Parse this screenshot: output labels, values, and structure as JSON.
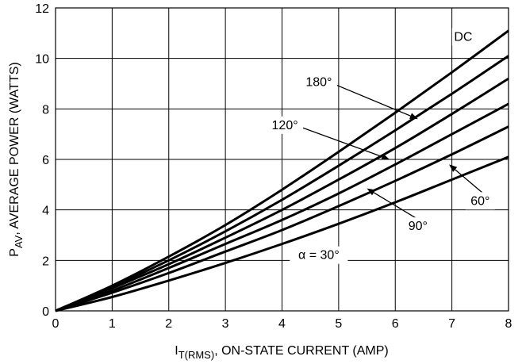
{
  "chart_data": {
    "type": "line",
    "xlabel": "I_T(RMS), ON-STATE CURRENT (AMP)",
    "xlabel_main": "I",
    "xlabel_sub": "T(RMS)",
    "xlabel_rest": ", ON-STATE CURRENT (AMP)",
    "ylabel": "P_AV, AVERAGE POWER (WATTS)",
    "ylabel_main": "P",
    "ylabel_sub": "AV",
    "ylabel_rest": ", AVERAGE POWER (WATTS)",
    "xlim": [
      0,
      8
    ],
    "ylim": [
      0,
      12
    ],
    "xticks": [
      0,
      1,
      2,
      3,
      4,
      5,
      6,
      7,
      8
    ],
    "yticks": [
      0,
      2,
      4,
      6,
      8,
      10,
      12
    ],
    "grid": true,
    "series": [
      {
        "name": "DC",
        "x": [
          0,
          1,
          2,
          3,
          4,
          5,
          6,
          7,
          8
        ],
        "y": [
          0,
          1.0,
          2.15,
          3.4,
          4.8,
          6.3,
          7.85,
          9.45,
          11.1
        ]
      },
      {
        "name": "180°",
        "x": [
          0,
          1,
          2,
          3,
          4,
          5,
          6,
          7,
          8
        ],
        "y": [
          0,
          0.95,
          2.0,
          3.15,
          4.4,
          5.75,
          7.15,
          8.6,
          10.1
        ]
      },
      {
        "name": "120°",
        "x": [
          0,
          1,
          2,
          3,
          4,
          5,
          6,
          7,
          8
        ],
        "y": [
          0,
          0.9,
          1.85,
          2.9,
          4.0,
          5.2,
          6.45,
          7.8,
          9.2
        ]
      },
      {
        "name": "90°",
        "x": [
          0,
          1,
          2,
          3,
          4,
          5,
          6,
          7,
          8
        ],
        "y": [
          0,
          0.8,
          1.7,
          2.65,
          3.6,
          4.65,
          5.8,
          7.0,
          8.2
        ]
      },
      {
        "name": "60°",
        "x": [
          0,
          1,
          2,
          3,
          4,
          5,
          6,
          7,
          8
        ],
        "y": [
          0,
          0.72,
          1.5,
          2.35,
          3.2,
          4.15,
          5.15,
          6.2,
          7.3
        ]
      },
      {
        "name": "α = 30°",
        "x": [
          0,
          1,
          2,
          3,
          4,
          5,
          6,
          7,
          8
        ],
        "y": [
          0,
          0.55,
          1.2,
          1.9,
          2.65,
          3.45,
          4.3,
          5.2,
          6.1
        ]
      }
    ],
    "annotations": [
      {
        "text": "DC",
        "x": 7.2,
        "y": 10.7,
        "target_x": null,
        "target_y": null
      },
      {
        "text": "180°",
        "x": 4.65,
        "y": 8.9,
        "target_x": 6.4,
        "target_y": 7.6
      },
      {
        "text": "120°",
        "x": 4.05,
        "y": 7.2,
        "target_x": 5.9,
        "target_y": 6.0
      },
      {
        "text": "90°",
        "x": 6.4,
        "y": 3.2,
        "target_x": 5.5,
        "target_y": 4.85
      },
      {
        "text": "60°",
        "x": 7.5,
        "y": 4.2,
        "target_x": 6.95,
        "target_y": 5.8
      },
      {
        "text": "α = 30°",
        "x": 4.65,
        "y": 2.05,
        "target_x": null,
        "target_y": null
      }
    ]
  }
}
